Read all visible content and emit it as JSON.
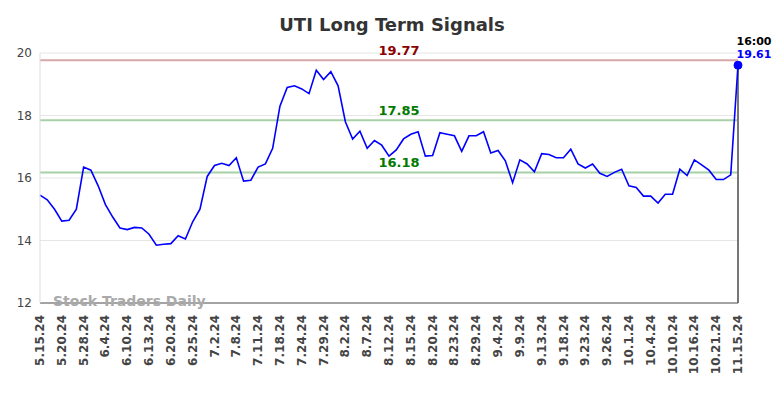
{
  "chart_data": {
    "type": "line",
    "title": "UTI Long Term Signals",
    "categories": [
      "5.15.24",
      null,
      null,
      "5.20.24",
      null,
      null,
      "5.28.24",
      null,
      null,
      "6.4.24",
      null,
      null,
      "6.10.24",
      null,
      null,
      "6.13.24",
      null,
      null,
      "6.20.24",
      null,
      null,
      "6.25.24",
      null,
      null,
      "7.2.24",
      null,
      null,
      "7.8.24",
      null,
      null,
      "7.11.24",
      null,
      null,
      "7.18.24",
      null,
      null,
      "7.24.24",
      null,
      null,
      "7.29.24",
      null,
      null,
      "8.2.24",
      null,
      null,
      "8.7.24",
      null,
      null,
      "8.12.24",
      null,
      null,
      "8.15.24",
      null,
      null,
      "8.20.24",
      null,
      null,
      "8.23.24",
      null,
      null,
      "8.29.24",
      null,
      null,
      "9.4.24",
      null,
      null,
      "9.9.24",
      null,
      null,
      "9.13.24",
      null,
      null,
      "9.18.24",
      null,
      null,
      "9.23.24",
      null,
      null,
      "9.26.24",
      null,
      null,
      "10.1.24",
      null,
      null,
      "10.4.24",
      null,
      null,
      "10.10.24",
      null,
      null,
      "10.16.24",
      null,
      null,
      "10.21.24",
      null,
      null,
      "11.15.24"
    ],
    "values": [
      15.45,
      15.3,
      15.0,
      14.62,
      14.65,
      15.0,
      16.35,
      16.25,
      15.75,
      15.15,
      14.75,
      14.4,
      14.35,
      14.42,
      14.4,
      14.2,
      13.85,
      13.88,
      13.9,
      14.15,
      14.05,
      14.6,
      15.0,
      16.05,
      16.4,
      16.47,
      16.4,
      16.65,
      15.9,
      15.93,
      16.35,
      16.45,
      16.95,
      18.3,
      18.9,
      18.95,
      18.85,
      18.7,
      19.45,
      19.15,
      19.4,
      18.95,
      17.8,
      17.25,
      17.5,
      16.95,
      17.2,
      17.05,
      16.7,
      16.9,
      17.25,
      17.4,
      17.48,
      16.7,
      16.72,
      17.45,
      17.4,
      17.35,
      16.85,
      17.35,
      17.35,
      17.48,
      16.8,
      16.88,
      16.55,
      15.85,
      16.58,
      16.45,
      16.2,
      16.78,
      16.75,
      16.65,
      16.65,
      16.92,
      16.45,
      16.32,
      16.45,
      16.15,
      16.05,
      16.18,
      16.28,
      15.75,
      15.7,
      15.42,
      15.42,
      15.2,
      15.48,
      15.48,
      16.28,
      16.08,
      16.58,
      16.42,
      16.25,
      15.95,
      15.95,
      16.1,
      19.61
    ],
    "color": "#0000ff",
    "ylim": [
      12,
      20
    ],
    "yticks": [
      12,
      14,
      16,
      18,
      20
    ],
    "grid": true,
    "reference_lines": [
      {
        "value": 19.77,
        "color": "#8b0000"
      },
      {
        "value": 17.85,
        "color": "#007a00"
      },
      {
        "value": 16.18,
        "color": "#007a00"
      }
    ],
    "last_time": "16:00",
    "watermark": "Stock Traders Daily"
  }
}
